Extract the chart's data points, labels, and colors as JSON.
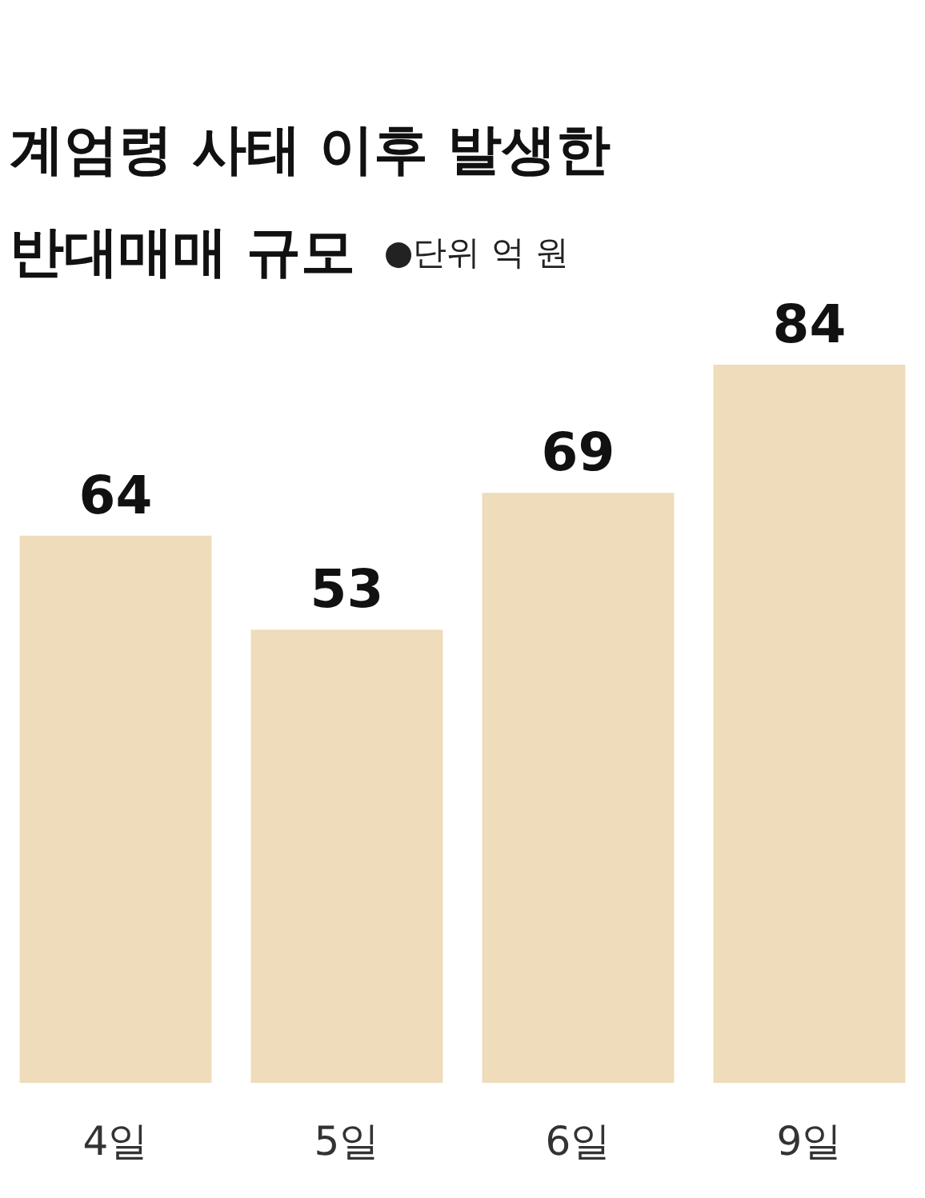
{
  "chart_data": {
    "type": "bar",
    "title": "계엄령 사태 이후 발생한\n반대매매 규모",
    "subtitle": "●단위 억 원",
    "categories": [
      "4일",
      "5일",
      "6일",
      "9일"
    ],
    "values": [
      64,
      53,
      69,
      84
    ],
    "color": "#eedcba",
    "data_labels": true
  }
}
